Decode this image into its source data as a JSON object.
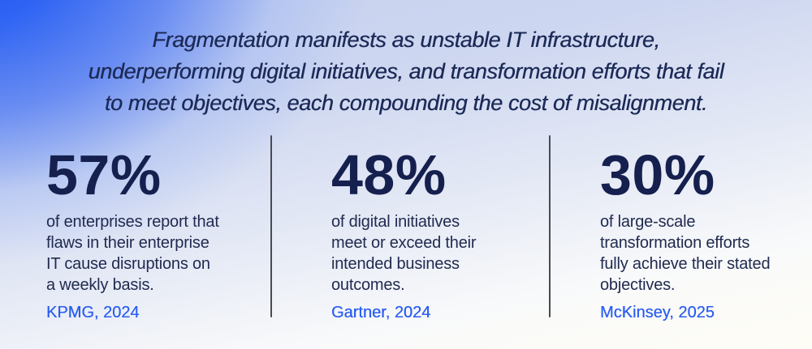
{
  "headline": {
    "text": "Fragmentation manifests as unstable IT infrastructure,\nunderperforming digital initiatives, and transformation efforts that fail\nto meet objectives, each compounding the cost of misalignment."
  },
  "stats": [
    {
      "value": "57%",
      "description": "of enterprises report that\nflaws in their enterprise\nIT cause disruptions on\na weekly basis.",
      "source": "KPMG, 2024"
    },
    {
      "value": "48%",
      "description": "of digital initiatives\nmeet or exceed their\nintended business\noutcomes.",
      "source": "Gartner, 2024"
    },
    {
      "value": "30%",
      "description": "of large-scale\ntransformation efforts\nfully achieve their stated\nobjectives.",
      "source": "McKinsey, 2025"
    }
  ],
  "colors": {
    "gradient_blue": "#2e63f3",
    "gradient_lavender": "#cbd4ee",
    "gradient_warm_white": "#fffdf6",
    "headline_text": "#1c2a57",
    "stat_number": "#15204e",
    "stat_description": "#212b50",
    "source_link": "#2a5ef2",
    "divider": "#4a4a52"
  }
}
